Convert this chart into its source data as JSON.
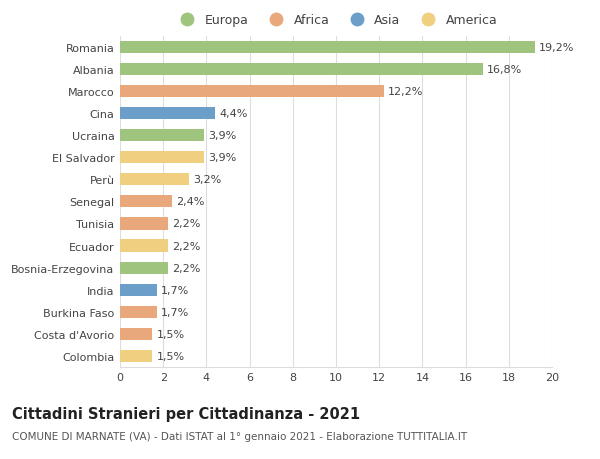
{
  "categories": [
    "Romania",
    "Albania",
    "Marocco",
    "Cina",
    "Ucraina",
    "El Salvador",
    "Perù",
    "Senegal",
    "Tunisia",
    "Ecuador",
    "Bosnia-Erzegovina",
    "India",
    "Burkina Faso",
    "Costa d'Avorio",
    "Colombia"
  ],
  "values": [
    19.2,
    16.8,
    12.2,
    4.4,
    3.9,
    3.9,
    3.2,
    2.4,
    2.2,
    2.2,
    2.2,
    1.7,
    1.7,
    1.5,
    1.5
  ],
  "labels": [
    "19,2%",
    "16,8%",
    "12,2%",
    "4,4%",
    "3,9%",
    "3,9%",
    "3,2%",
    "2,4%",
    "2,2%",
    "2,2%",
    "2,2%",
    "1,7%",
    "1,7%",
    "1,5%",
    "1,5%"
  ],
  "colors": [
    "#9fc47d",
    "#9fc47d",
    "#e8a87c",
    "#6b9fc9",
    "#9fc47d",
    "#f0d080",
    "#f0d080",
    "#e8a87c",
    "#e8a87c",
    "#f0d080",
    "#9fc47d",
    "#6b9fc9",
    "#e8a87c",
    "#e8a87c",
    "#f0d080"
  ],
  "legend_labels": [
    "Europa",
    "Africa",
    "Asia",
    "America"
  ],
  "legend_colors": [
    "#9fc47d",
    "#e8a87c",
    "#6b9fc9",
    "#f0d080"
  ],
  "title": "Cittadini Stranieri per Cittadinanza - 2021",
  "subtitle": "COMUNE DI MARNATE (VA) - Dati ISTAT al 1° gennaio 2021 - Elaborazione TUTTITALIA.IT",
  "xlim": [
    0,
    20
  ],
  "xticks": [
    0,
    2,
    4,
    6,
    8,
    10,
    12,
    14,
    16,
    18,
    20
  ],
  "background_color": "#ffffff",
  "grid_color": "#dddddd",
  "bar_height": 0.55,
  "label_fontsize": 8,
  "tick_fontsize": 8,
  "title_fontsize": 10.5,
  "subtitle_fontsize": 7.5
}
